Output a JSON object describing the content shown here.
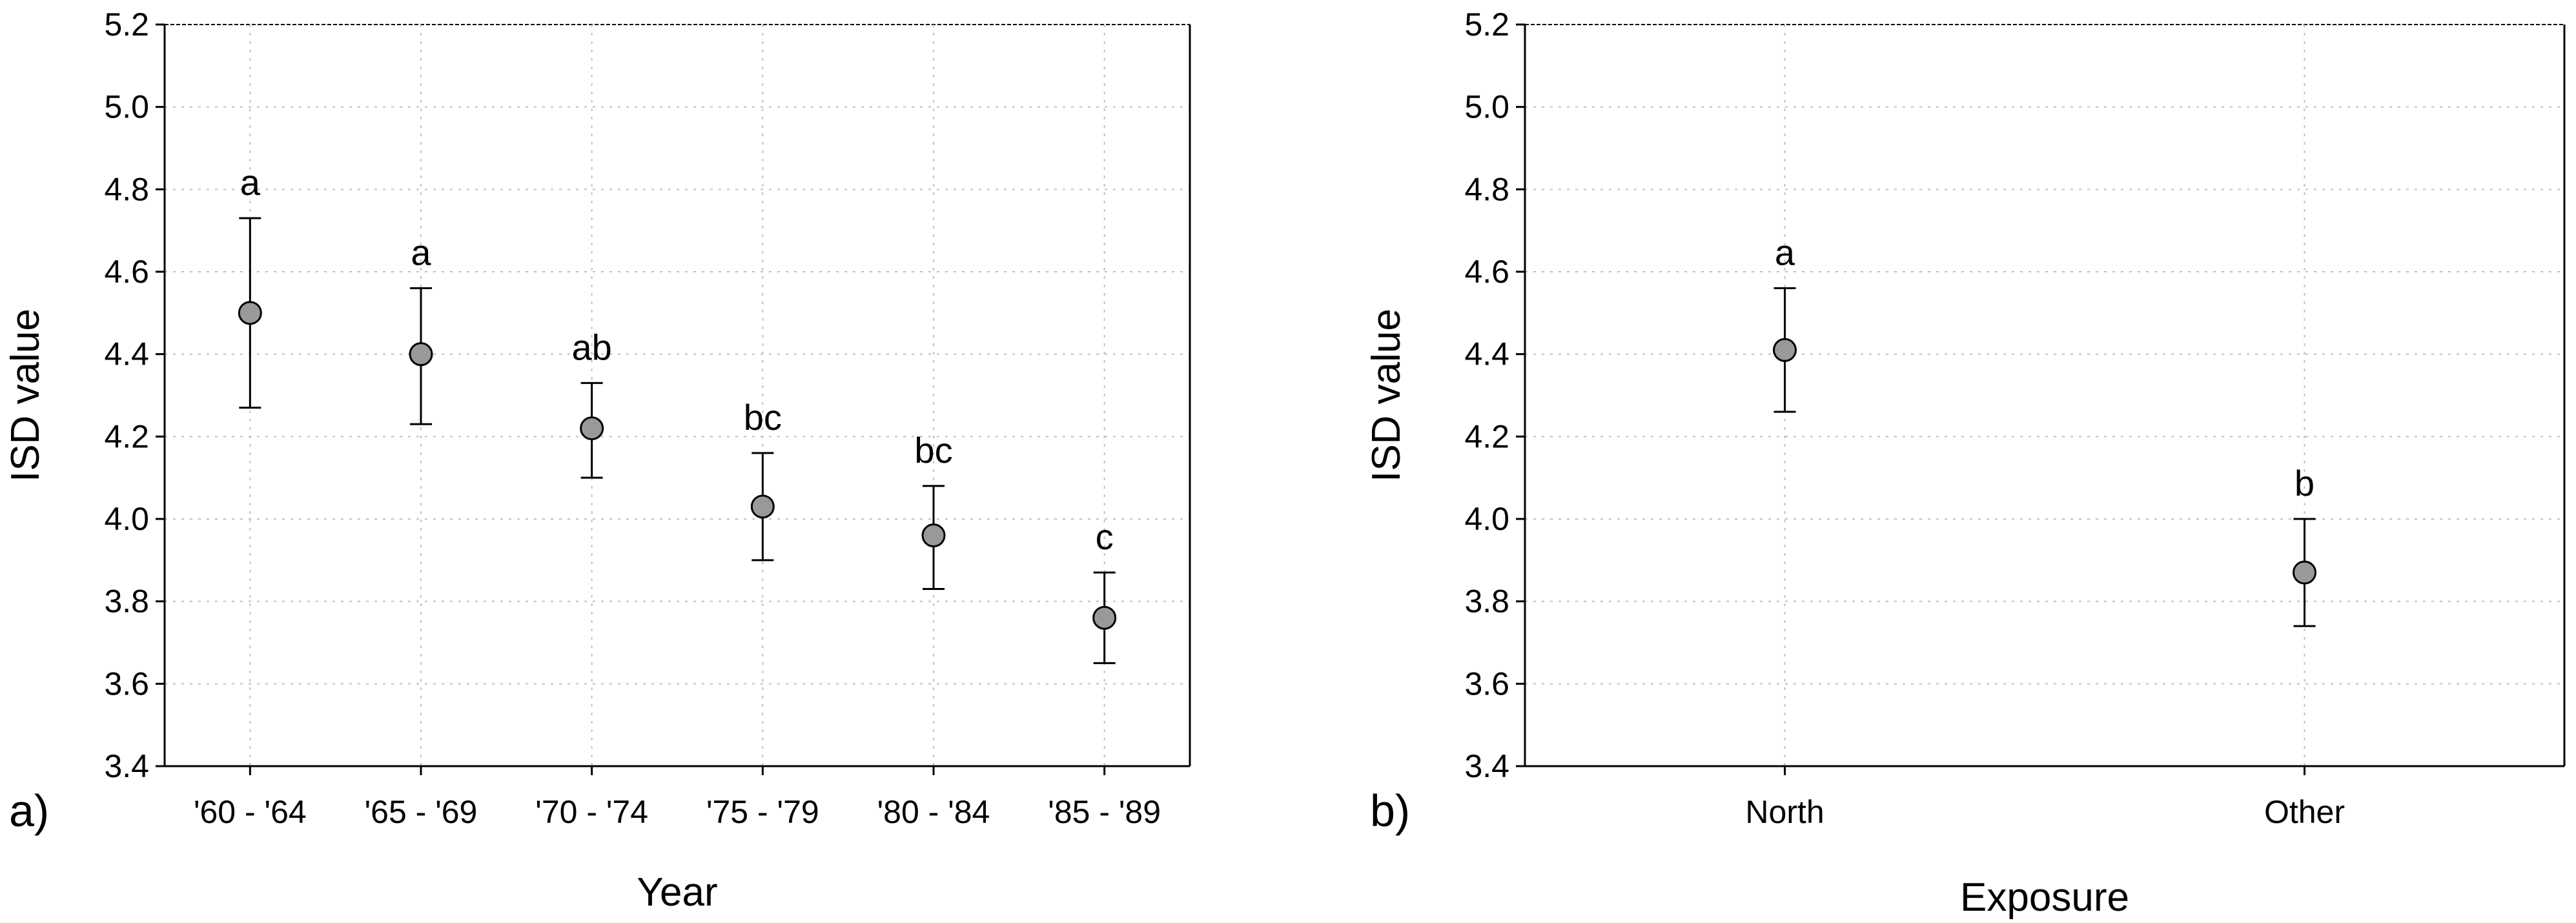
{
  "chart_data": [
    {
      "type": "scatter",
      "panel_label": "a)",
      "xlabel": "Year",
      "ylabel": "ISD value",
      "ylim": [
        3.4,
        5.2
      ],
      "yticks": [
        "3.4",
        "3.6",
        "3.8",
        "4.0",
        "4.2",
        "4.4",
        "4.6",
        "4.8",
        "5.0",
        "5.2"
      ],
      "grid": true,
      "categories": [
        "'60 - '64",
        "'65 - '69",
        "'70 - '74",
        "'75 - '79",
        "'80 - '84",
        "'85 - '89"
      ],
      "values": [
        4.5,
        4.4,
        4.22,
        4.03,
        3.96,
        3.76
      ],
      "error_low": [
        4.27,
        4.23,
        4.1,
        3.9,
        3.83,
        3.65
      ],
      "error_high": [
        4.73,
        4.56,
        4.33,
        4.16,
        4.08,
        3.87
      ],
      "letters": [
        "a",
        "a",
        "ab",
        "bc",
        "bc",
        "c"
      ],
      "marker_color": "#999999"
    },
    {
      "type": "scatter",
      "panel_label": "b)",
      "xlabel": "Exposure",
      "ylabel": "ISD value",
      "ylim": [
        3.4,
        5.2
      ],
      "yticks": [
        "3.4",
        "3.6",
        "3.8",
        "4.0",
        "4.2",
        "4.4",
        "4.6",
        "4.8",
        "5.0",
        "5.2"
      ],
      "grid": true,
      "categories": [
        "North",
        "Other"
      ],
      "values": [
        4.41,
        3.87
      ],
      "error_low": [
        4.26,
        3.74
      ],
      "error_high": [
        4.56,
        4.0
      ],
      "letters": [
        "a",
        "b"
      ],
      "marker_color": "#999999"
    }
  ]
}
